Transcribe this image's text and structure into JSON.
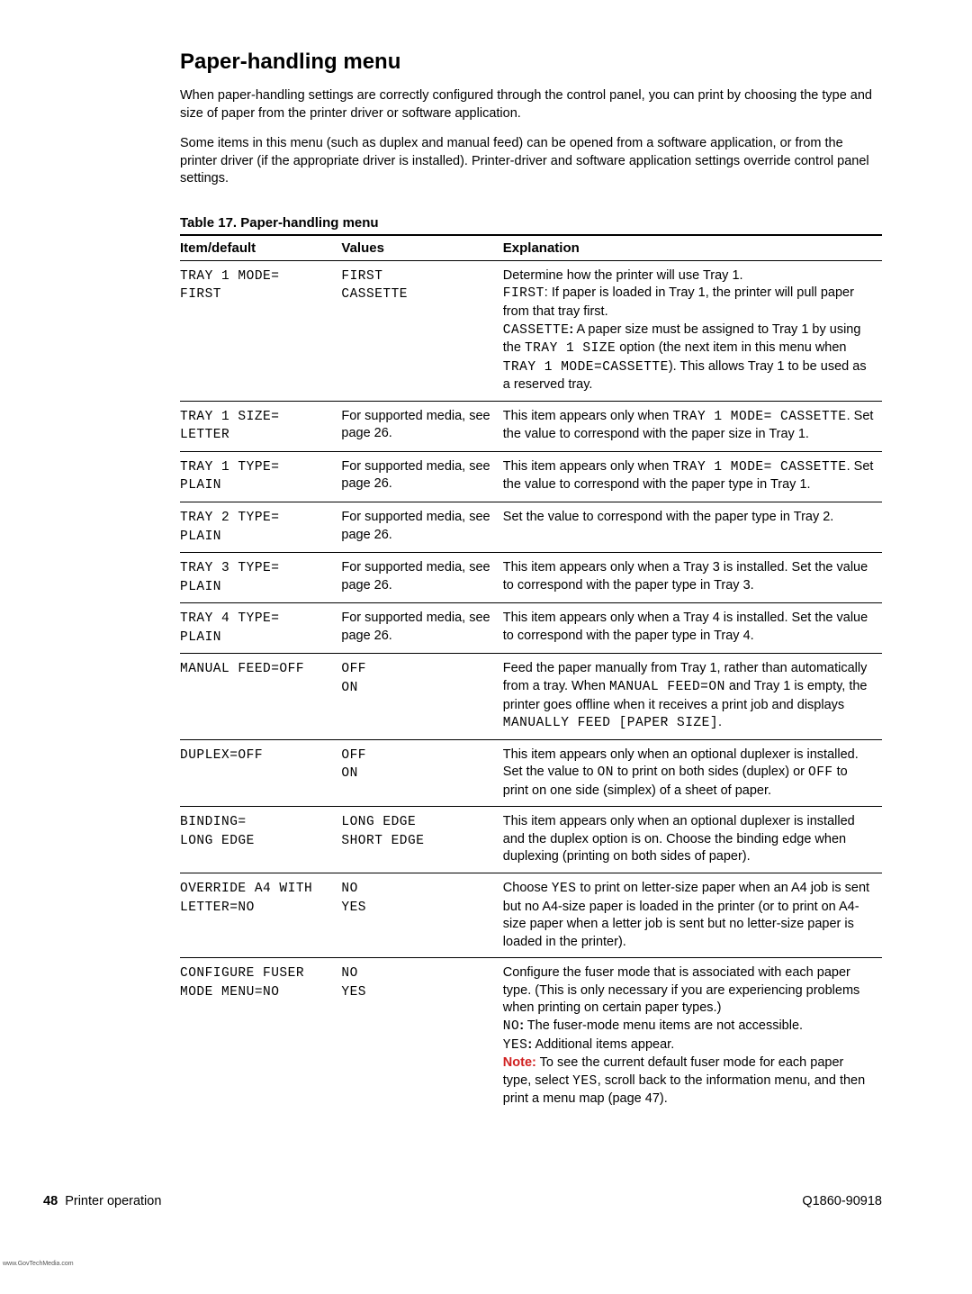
{
  "title": "Paper-handling menu",
  "intro": [
    "When paper-handling settings are correctly configured through the control panel, you can print by choosing the type and size of paper from the printer driver or software application.",
    "Some items in this menu (such as duplex and manual feed) can be opened from a software application, or from the printer driver (if the appropriate driver is installed). Printer-driver and software application settings override control panel settings."
  ],
  "table": {
    "caption": "Table 17. Paper-handling menu",
    "headers": {
      "item": "Item/default",
      "values": "Values",
      "explanation": "Explanation"
    },
    "rows": [
      {
        "item_html": "<span class=\"mono\">TRAY 1 MODE=<br>FIRST</span>",
        "values_html": "<span class=\"mono\">FIRST<br>CASSETTE</span>",
        "expl_html": "Determine how the printer will use Tray 1.<br><span class=\"mono\">FIRST</span>: If paper is loaded in Tray 1, the printer will pull paper from that tray first.<br><span class=\"mono\">CASSETTE</span><b>:</b> A paper size must be assigned to Tray 1 by using the <span class=\"mono\">TRAY 1 SIZE</span> option (the next item in this menu when <span class=\"mono\">TRAY 1 MODE=CASSETTE</span>). This allows Tray 1 to be used as a reserved tray."
      },
      {
        "item_html": "<span class=\"mono\">TRAY 1 SIZE=<br>LETTER</span>",
        "values_html": "For supported media, see page 26.",
        "expl_html": "This item appears only when <span class=\"mono\">TRAY 1 MODE= CASSETTE</span>. Set the value to correspond with the paper size in Tray 1."
      },
      {
        "item_html": "<span class=\"mono\">TRAY 1 TYPE=<br>PLAIN</span>",
        "values_html": "For supported media, see page 26.",
        "expl_html": "This item appears only when <span class=\"mono\">TRAY 1 MODE= CASSETTE</span>. Set the value to correspond with the paper type in Tray 1."
      },
      {
        "item_html": "<span class=\"mono\">TRAY 2 TYPE=<br>PLAIN</span>",
        "values_html": "For supported media, see page 26.",
        "expl_html": "Set the value to correspond with the paper type in Tray 2."
      },
      {
        "item_html": "<span class=\"mono\">TRAY 3 TYPE=<br>PLAIN</span>",
        "values_html": "For supported media, see page 26.",
        "expl_html": "This item appears only when a Tray 3 is installed. Set the value to correspond with the paper type in Tray 3."
      },
      {
        "item_html": "<span class=\"mono\">TRAY 4 TYPE=<br>PLAIN</span>",
        "values_html": "For supported media, see page 26.",
        "expl_html": "This item appears only when a Tray 4 is installed. Set the value to correspond with the paper type in Tray 4."
      },
      {
        "item_html": "<span class=\"mono\">MANUAL FEED=OFF</span>",
        "values_html": "<span class=\"mono\">OFF<br>ON</span>",
        "expl_html": "Feed the paper manually from Tray 1, rather than automatically from a tray. When <span class=\"mono\">MANUAL FEED=ON</span> and Tray 1 is empty, the printer goes offline when it receives a print job and displays <span class=\"mono\">MANUALLY FEED [PAPER SIZE]</span>."
      },
      {
        "item_html": "<span class=\"mono\">DUPLEX=OFF</span>",
        "values_html": "<span class=\"mono\">OFF<br>ON</span>",
        "expl_html": "This item appears only when an optional duplexer is installed. Set the value to <span class=\"mono\">ON</span> to print on both sides (duplex) or <span class=\"mono\">OFF</span> to print on one side (simplex) of a sheet of paper."
      },
      {
        "item_html": "<span class=\"mono\">BINDING=<br>LONG EDGE</span>",
        "values_html": "<span class=\"mono\">LONG EDGE<br>SHORT EDGE</span>",
        "expl_html": "This item appears only when an optional duplexer is installed and the duplex option is on. Choose the binding edge when duplexing (printing on both sides of paper)."
      },
      {
        "item_html": "<span class=\"mono\">OVERRIDE A4 WITH LETTER=NO</span>",
        "values_html": "<span class=\"mono\">NO<br>YES</span>",
        "expl_html": "Choose <span class=\"mono\">YES</span> to print on letter-size paper when an A4 job is sent but no A4-size paper is loaded in the printer (or to print on A4-size paper when a letter job is sent but no letter-size paper is loaded in the printer)."
      },
      {
        "item_html": "<span class=\"mono\">CONFIGURE FUSER MODE MENU=NO</span>",
        "values_html": "<span class=\"mono\">NO<br>YES</span>",
        "expl_html": "Configure the fuser mode that is associated with each paper type. (This is only necessary if you are experiencing problems when printing on certain paper types.)<br><span class=\"mono\">NO</span><b>:</b> The fuser-mode menu items are not accessible.<br><span class=\"mono\">YES</span><b>:</b> Additional items appear.<br><span class=\"note-label\">Note:</span> To see the current default fuser mode for each paper type, select <span class=\"mono\">YES</span>, scroll back to the information menu, and then print a menu map (page 47)."
      }
    ]
  },
  "footer": {
    "page_number": "48",
    "section": "Printer operation",
    "doc_id": "Q1860-90918"
  },
  "watermark": "www.GovTechMedia.com"
}
